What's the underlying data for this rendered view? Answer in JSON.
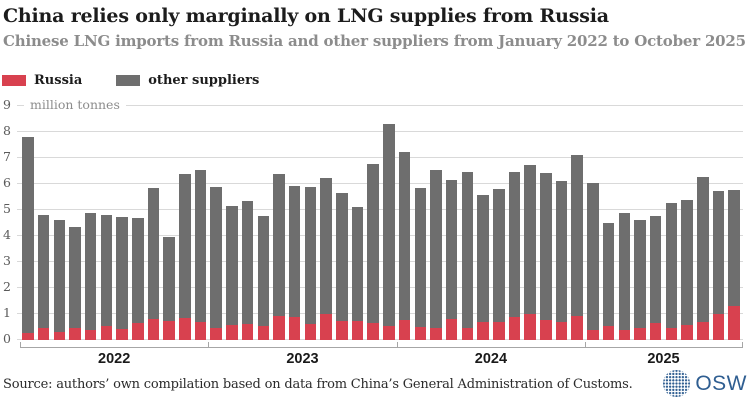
{
  "header": {
    "title": "China relies only marginally on LNG supplies from Russia",
    "subtitle": "Chinese LNG imports from Russia and other suppliers from January 2022 to October 2025"
  },
  "legend": [
    {
      "label": "Russia",
      "color": "#d8414f"
    },
    {
      "label": "other suppliers",
      "color": "#6e6e6e"
    }
  ],
  "chart_data": {
    "type": "bar",
    "stacked": true,
    "title": "China relies only marginally on LNG supplies from Russia",
    "subtitle": "Chinese LNG imports from Russia and other suppliers from January 2022 to October 2025",
    "ylabel": "million tonnes",
    "ylim": [
      0,
      9
    ],
    "yticks": [
      0,
      1,
      2,
      3,
      4,
      5,
      6,
      7,
      8,
      9
    ],
    "grid": true,
    "legend_position": "top-left",
    "categories": [
      "Jan 2022",
      "Feb 2022",
      "Mar 2022",
      "Apr 2022",
      "May 2022",
      "Jun 2022",
      "Jul 2022",
      "Aug 2022",
      "Sep 2022",
      "Oct 2022",
      "Nov 2022",
      "Dec 2022",
      "Jan 2023",
      "Feb 2023",
      "Mar 2023",
      "Apr 2023",
      "May 2023",
      "Jun 2023",
      "Jul 2023",
      "Aug 2023",
      "Sep 2023",
      "Oct 2023",
      "Nov 2023",
      "Dec 2023",
      "Jan 2024",
      "Feb 2024",
      "Mar 2024",
      "Apr 2024",
      "May 2024",
      "Jun 2024",
      "Jul 2024",
      "Aug 2024",
      "Sep 2024",
      "Oct 2024",
      "Nov 2024",
      "Dec 2024",
      "Jan 2025",
      "Feb 2025",
      "Mar 2025",
      "Apr 2025",
      "May 2025",
      "Jun 2025",
      "Jul 2025",
      "Aug 2025",
      "Sep 2025",
      "Oct 2025"
    ],
    "series": [
      {
        "name": "Russia",
        "color": "#d8414f",
        "values": [
          0.28,
          0.45,
          0.32,
          0.45,
          0.38,
          0.52,
          0.42,
          0.66,
          0.8,
          0.73,
          0.83,
          0.68,
          0.47,
          0.59,
          0.61,
          0.55,
          0.91,
          0.87,
          0.63,
          1.0,
          0.73,
          0.74,
          0.64,
          0.52,
          0.76,
          0.49,
          0.46,
          0.79,
          0.46,
          0.68,
          0.69,
          0.89,
          0.99,
          0.76,
          0.69,
          0.92,
          0.39,
          0.53,
          0.4,
          0.46,
          0.65,
          0.46,
          0.57,
          0.7,
          1.0,
          1.32
        ]
      },
      {
        "name": "other suppliers",
        "color": "#6e6e6e",
        "values": [
          7.52,
          4.35,
          4.28,
          3.9,
          4.52,
          4.28,
          4.3,
          4.04,
          5.05,
          3.24,
          5.57,
          5.87,
          5.43,
          4.56,
          4.74,
          4.21,
          5.47,
          5.05,
          5.25,
          5.24,
          4.92,
          4.38,
          6.12,
          7.78,
          6.46,
          5.36,
          6.09,
          5.38,
          6.02,
          4.9,
          5.11,
          5.57,
          5.73,
          5.68,
          5.41,
          6.18,
          5.66,
          3.97,
          4.5,
          4.14,
          4.12,
          4.81,
          4.83,
          5.59,
          4.72,
          4.46
        ]
      }
    ],
    "x_year_groups": [
      {
        "label": "2022",
        "months": 12
      },
      {
        "label": "2023",
        "months": 12
      },
      {
        "label": "2024",
        "months": 12
      },
      {
        "label": "2025",
        "months": 10
      }
    ]
  },
  "footer": {
    "source": "Source: authors’ own compilation based on data from China’s General Administration of Customs.",
    "logo_text": "OSW"
  },
  "colors": {
    "russia": "#d8414f",
    "other": "#6e6e6e",
    "gridline": "#d9d9d9",
    "axis": "#a6a6a6",
    "logo_blue": "#2f5e91"
  }
}
